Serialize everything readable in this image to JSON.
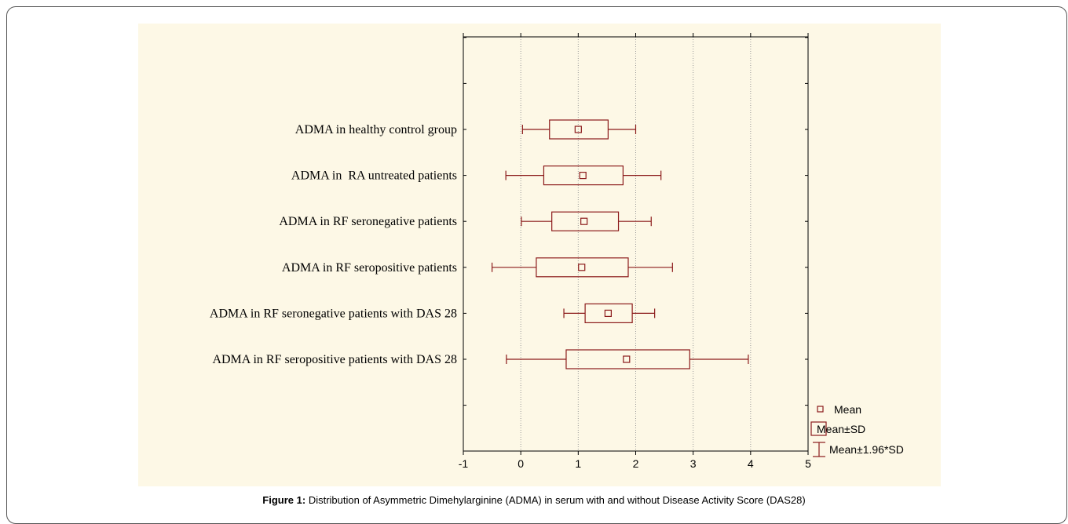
{
  "caption": {
    "label": "Figure 1:",
    "text": "Distribution of Asymmetric Dimehylarginine (ADMA) in serum with and without Disease Activity Score (DAS28)"
  },
  "chart_data": {
    "type": "box",
    "orientation": "horizontal",
    "color": "#8b1a1a",
    "xlim": [
      -1,
      5
    ],
    "xticks": [
      "-1",
      "0",
      "1",
      "2",
      "3",
      "4",
      "5"
    ],
    "grid_x": true,
    "legend_position": "bottom-right",
    "categories": [
      "ADMA in healthy control group",
      "ADMA in  RA untreated patients",
      "ADMA in RF seronegative patients",
      "ADMA in RF seropositive patients",
      "ADMA in RF seronegative patients with DAS 28",
      "ADMA in RF seropositive patients with DAS 28"
    ],
    "series": [
      {
        "mean": 1.0,
        "sd_low": 0.5,
        "sd_high": 1.52,
        "ci_low": 0.03,
        "ci_high": 2.0
      },
      {
        "mean": 1.08,
        "sd_low": 0.4,
        "sd_high": 1.78,
        "ci_low": -0.26,
        "ci_high": 2.44
      },
      {
        "mean": 1.1,
        "sd_low": 0.54,
        "sd_high": 1.7,
        "ci_low": 0.01,
        "ci_high": 2.27
      },
      {
        "mean": 1.06,
        "sd_low": 0.27,
        "sd_high": 1.87,
        "ci_low": -0.5,
        "ci_high": 2.64
      },
      {
        "mean": 1.52,
        "sd_low": 1.12,
        "sd_high": 1.94,
        "ci_low": 0.75,
        "ci_high": 2.33
      },
      {
        "mean": 1.84,
        "sd_low": 0.79,
        "sd_high": 2.94,
        "ci_low": -0.25,
        "ci_high": 3.96
      }
    ],
    "legend": [
      {
        "symbol": "point",
        "label": "Mean"
      },
      {
        "symbol": "box",
        "label": "Mean±SD"
      },
      {
        "symbol": "whisker",
        "label": "Mean±1.96*SD"
      }
    ]
  }
}
